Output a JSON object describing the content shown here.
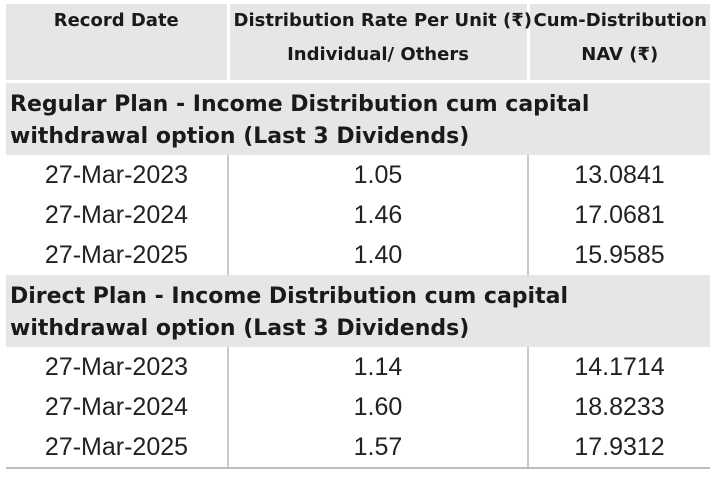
{
  "table": {
    "headers": {
      "record_date": "Record Date",
      "rate_line1": "Distribution Rate Per Unit  (₹)",
      "rate_line2": "Individual/ Others",
      "nav_line1": "Cum-Distribution",
      "nav_line2": "NAV (₹)"
    },
    "sections": [
      {
        "title_line1": "Regular Plan - Income Distribution cum capital",
        "title_line2": "withdrawal option (Last 3 Dividends)",
        "rows": [
          {
            "date": "27-Mar-2023",
            "rate": "1.05",
            "nav": "13.0841"
          },
          {
            "date": "27-Mar-2024",
            "rate": "1.46",
            "nav": "17.0681"
          },
          {
            "date": "27-Mar-2025",
            "rate": "1.40",
            "nav": "15.9585"
          }
        ]
      },
      {
        "title_line1": "Direct Plan - Income Distribution cum capital",
        "title_line2": "withdrawal option (Last 3 Dividends)",
        "rows": [
          {
            "date": "27-Mar-2023",
            "rate": "1.14",
            "nav": "14.1714"
          },
          {
            "date": "27-Mar-2024",
            "rate": "1.60",
            "nav": "18.8233"
          },
          {
            "date": "27-Mar-2025",
            "rate": "1.57",
            "nav": "17.9312"
          }
        ]
      }
    ]
  }
}
